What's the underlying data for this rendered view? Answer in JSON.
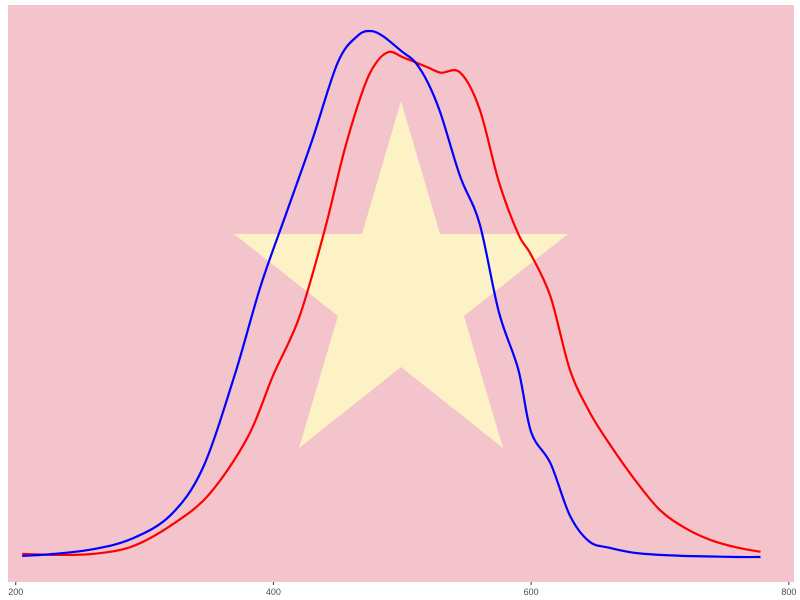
{
  "chart_data": {
    "type": "line",
    "title": "",
    "xlabel": "",
    "ylabel": "",
    "xlim": [
      194,
      804
    ],
    "ylim": [
      0,
      1
    ],
    "x_ticks": [
      {
        "value": 200,
        "label": "200"
      },
      {
        "value": 400,
        "label": "400"
      },
      {
        "value": 600,
        "label": "600"
      },
      {
        "value": 800,
        "label": "800"
      }
    ],
    "y_axis_labels_shown": false,
    "grid": false,
    "legend": "none",
    "background_color": "#f3c4cc",
    "decoration": {
      "shape": "five-pointed-star",
      "color": "#fdf2c6"
    },
    "series": [
      {
        "color": "#ff0000",
        "x": [
          205,
          230,
          260,
          290,
          320,
          350,
          380,
          400,
          420,
          440,
          455,
          470,
          480,
          490,
          500,
          510,
          520,
          530,
          545,
          560,
          575,
          590,
          600,
          615,
          630,
          645,
          660,
          680,
          700,
          720,
          740,
          760,
          778
        ],
        "y": [
          0.006,
          0.004,
          0.006,
          0.02,
          0.06,
          0.12,
          0.23,
          0.35,
          0.46,
          0.63,
          0.78,
          0.9,
          0.95,
          0.97,
          0.96,
          0.95,
          0.94,
          0.93,
          0.93,
          0.86,
          0.72,
          0.62,
          0.58,
          0.5,
          0.36,
          0.28,
          0.22,
          0.15,
          0.09,
          0.055,
          0.032,
          0.018,
          0.01
        ]
      },
      {
        "color": "#0000ff",
        "x": [
          205,
          230,
          260,
          290,
          320,
          345,
          370,
          390,
          410,
          430,
          450,
          465,
          475,
          485,
          500,
          510,
          520,
          530,
          545,
          560,
          575,
          590,
          600,
          615,
          630,
          645,
          660,
          680,
          700,
          720,
          740,
          760,
          778
        ],
        "y": [
          0.002,
          0.006,
          0.015,
          0.035,
          0.08,
          0.17,
          0.35,
          0.52,
          0.66,
          0.8,
          0.95,
          1.0,
          1.01,
          1.0,
          0.97,
          0.95,
          0.91,
          0.85,
          0.73,
          0.64,
          0.47,
          0.36,
          0.24,
          0.18,
          0.08,
          0.03,
          0.018,
          0.008,
          0.004,
          0.002,
          0.001,
          0.0,
          0.0
        ]
      }
    ]
  }
}
